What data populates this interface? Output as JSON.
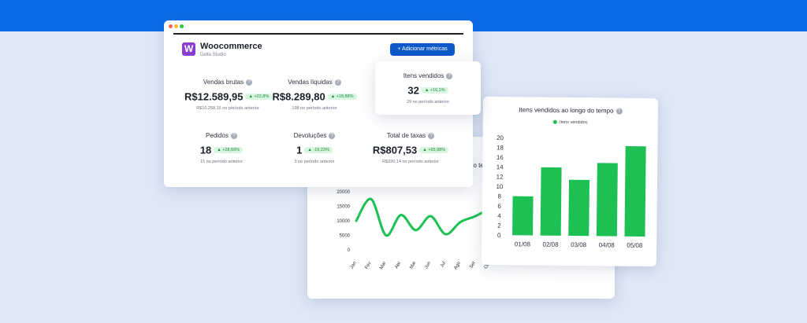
{
  "window": {
    "dot_colors": [
      "#ff5f57",
      "#febc2e",
      "#28c840"
    ]
  },
  "header": {
    "logo_letter": "W",
    "title": "Woocommerce",
    "subtitle": "Delta Studio",
    "add_button": "+ Adicionar métricas"
  },
  "metrics": [
    {
      "label": "Vendas brutas",
      "value": "R$12.589,95",
      "change": "+22,8%",
      "previous": "R$10.258,15 no período anterior"
    },
    {
      "label": "Vendas líquidas",
      "value": "R$8.289,80",
      "change": "+16,88%",
      "previous": "198 no período anterior"
    },
    {
      "label": "Pedidos",
      "value": "18",
      "change": "+28,66%",
      "previous": "15 no período anterior"
    },
    {
      "label": "Devoluções",
      "value": "1",
      "change": "-19,23%",
      "previous": "3 no período anterior"
    },
    {
      "label": "Total de taxas",
      "value": "R$807,53",
      "change": "+65,98%",
      "previous": "R$330,14 no período anterior"
    }
  ],
  "itens_card": {
    "label": "Itens vendidos",
    "value": "32",
    "change": "+16,1%",
    "previous": "29 no período anterior"
  },
  "line_card": {
    "title_fragment": "do te"
  },
  "chart_data": [
    {
      "type": "line",
      "title": "",
      "x": [
        "Jan",
        "Fev",
        "Mar",
        "Abr",
        "Mai",
        "Jun",
        "Jul",
        "Ago",
        "Set",
        "Out"
      ],
      "y_ticks": [
        "20000",
        "15000",
        "10000",
        "5000",
        "0"
      ],
      "ylim": [
        0,
        20000
      ],
      "series": [
        {
          "values": [
            10000,
            17500,
            5000,
            12000,
            6800,
            11600,
            5400,
            9600,
            11600,
            14300
          ]
        }
      ],
      "color": "#1dc053"
    },
    {
      "type": "bar",
      "title": "Itens vendidos ao longo do tempo",
      "categories": [
        "01/08",
        "02/08",
        "03/08",
        "04/08",
        "05/08"
      ],
      "series": [
        {
          "name": "Itens vendidos",
          "values": [
            8,
            14,
            11.5,
            15,
            18.5
          ]
        }
      ],
      "y_ticks": [
        "20",
        "18",
        "16",
        "14",
        "12",
        "10",
        "8",
        "6",
        "4",
        "2",
        "0"
      ],
      "ylim": [
        0,
        20
      ],
      "color": "#1dc053",
      "legend": "top-center"
    }
  ]
}
